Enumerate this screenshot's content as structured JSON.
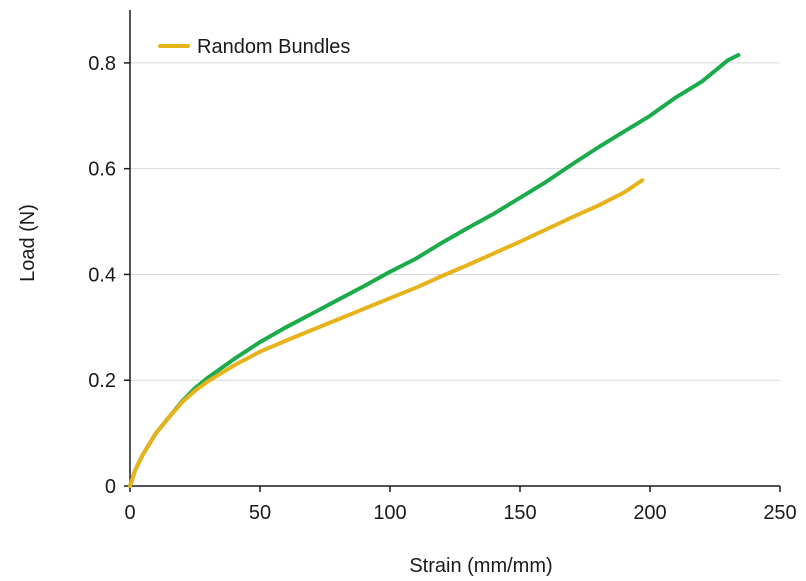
{
  "chart_data": {
    "type": "line",
    "title": "",
    "xlabel": "Strain (mm/mm)",
    "ylabel": "Load (N)",
    "xlim": [
      0,
      250
    ],
    "ylim": [
      0,
      0.9
    ],
    "x_ticks": [
      0,
      50,
      100,
      150,
      200,
      250
    ],
    "x_tick_labels": [
      "0",
      "50",
      "100",
      "150",
      "200",
      "250"
    ],
    "y_ticks": [
      0,
      0.2,
      0.4,
      0.6,
      0.8
    ],
    "y_tick_labels": [
      "0",
      "0.2",
      "0.4",
      "0.6",
      "0.8"
    ],
    "grid": "horizontal",
    "legend_position": "top-left",
    "series": [
      {
        "color": "#1aab4b",
        "x": [
          0,
          2,
          5,
          10,
          15,
          20,
          25,
          30,
          40,
          50,
          60,
          70,
          80,
          90,
          100,
          110,
          120,
          130,
          140,
          150,
          160,
          170,
          180,
          190,
          200,
          210,
          220,
          230,
          234
        ],
        "y": [
          0,
          0.03,
          0.06,
          0.1,
          0.13,
          0.16,
          0.185,
          0.205,
          0.24,
          0.272,
          0.3,
          0.326,
          0.352,
          0.378,
          0.405,
          0.43,
          0.46,
          0.488,
          0.515,
          0.545,
          0.575,
          0.608,
          0.64,
          0.67,
          0.7,
          0.735,
          0.765,
          0.805,
          0.815
        ]
      },
      {
        "name": "Random Bundles",
        "color": "#e8b31a",
        "x": [
          0,
          2,
          5,
          10,
          15,
          20,
          25,
          30,
          40,
          50,
          60,
          70,
          80,
          90,
          100,
          110,
          120,
          130,
          140,
          150,
          160,
          170,
          180,
          190,
          197
        ],
        "y": [
          0,
          0.03,
          0.06,
          0.1,
          0.13,
          0.158,
          0.18,
          0.198,
          0.228,
          0.254,
          0.275,
          0.295,
          0.315,
          0.335,
          0.355,
          0.375,
          0.397,
          0.418,
          0.44,
          0.462,
          0.485,
          0.508,
          0.53,
          0.555,
          0.578
        ]
      }
    ]
  }
}
